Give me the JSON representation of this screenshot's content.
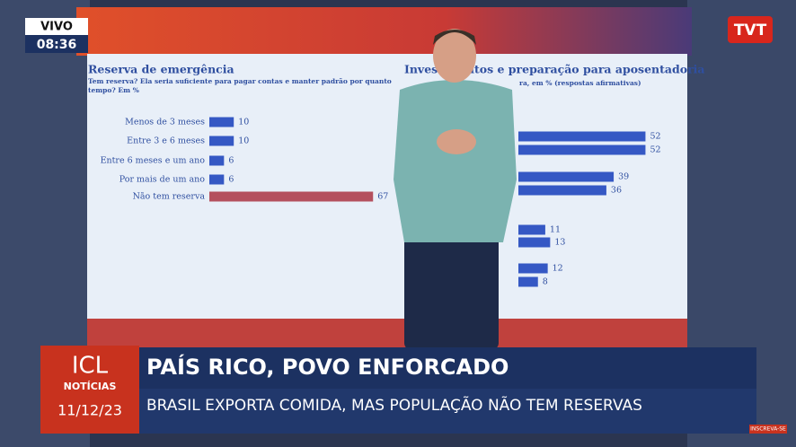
{
  "live_badge": {
    "label": "VIVO",
    "time": "08:36"
  },
  "channel_logo": "TVT",
  "chart_data": [
    {
      "type": "bar",
      "orientation": "horizontal",
      "title": "Reserva de emergência",
      "subtitle": "Tem reserva? Ela seria suficiente para pagar contas e manter padrão por quanto tempo? Em %",
      "categories": [
        "Menos de 3 meses",
        "Entre 3 e 6 meses",
        "Entre 6 meses e um ano",
        "Por mais de um ano",
        "Não tem reserva"
      ],
      "values": [
        10,
        10,
        6,
        6,
        67
      ],
      "colors": [
        "#3558c4",
        "#3558c4",
        "#3558c4",
        "#3558c4",
        "#b4505e"
      ],
      "xlim": [
        0,
        100
      ]
    },
    {
      "type": "bar",
      "orientation": "horizontal",
      "title": "Investimentos e preparação para aposentadoria",
      "subtitle": "ra, em % (respostas afirmativas)",
      "categories": [
        null,
        null,
        null,
        null,
        null,
        null,
        null,
        null
      ],
      "values": [
        52,
        52,
        39,
        36,
        11,
        13,
        12,
        8
      ],
      "colors": [
        "#3558c4",
        "#3558c4",
        "#3558c4",
        "#3558c4",
        "#3558c4",
        "#3558c4",
        "#3558c4",
        "#3558c4"
      ],
      "xlim": [
        0,
        100
      ]
    }
  ],
  "lower_third": {
    "logo": "ICL",
    "section": "NOTÍCIAS",
    "date": "11/12/23",
    "headline": "PAÍS RICO, POVO ENFORCADO",
    "subheadline": "BRASIL EXPORTA COMIDA, MAS POPULAÇÃO NÃO TEM RESERVAS"
  },
  "subscribe_button": "INSCREVA-SE"
}
